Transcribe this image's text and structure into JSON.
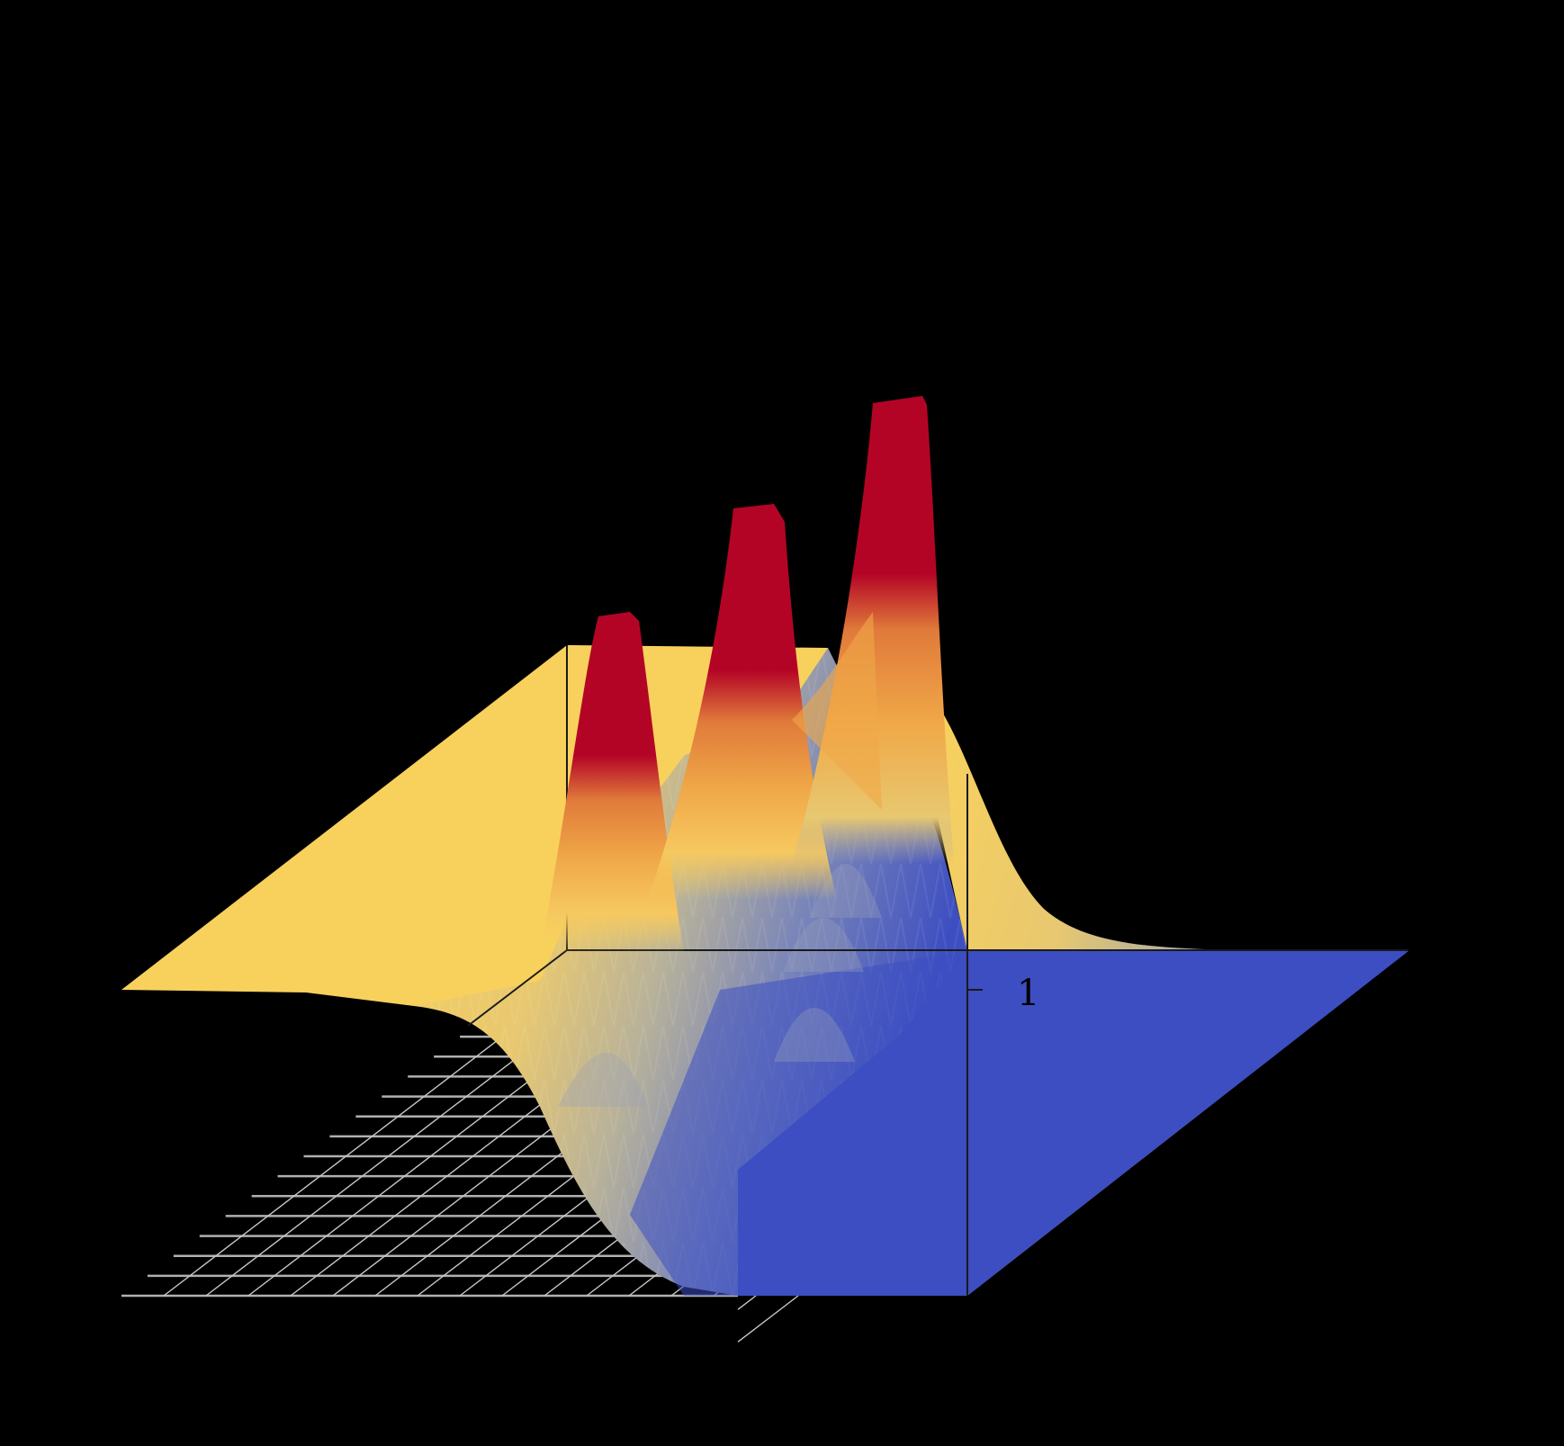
{
  "chart_data": {
    "type": "surface3d",
    "title": "",
    "xlabel": "",
    "ylabel": "",
    "zlabel": "",
    "colormap": "coolwarm",
    "z_ticks": [
      {
        "value": 1,
        "label": "1"
      }
    ],
    "features": {
      "high_plateau": {
        "side": "left/back",
        "color": "#F8D15C",
        "description": "flat region at high-ish value (yellow)"
      },
      "low_plateau": {
        "side": "right/front",
        "color": "#3D4EC2",
        "description": "flat region at low value (blue)"
      },
      "transition": "smooth sigmoid step from yellow plateau down to blue plateau with ripple/oscillation bands",
      "peaks": [
        {
          "index": 1,
          "relative_height": 0.62,
          "color": "#B40426",
          "position": "front-left"
        },
        {
          "index": 2,
          "relative_height": 0.8,
          "color": "#B40426",
          "position": "middle"
        },
        {
          "index": 3,
          "relative_height": 1.0,
          "color": "#B40426",
          "position": "back-right"
        }
      ]
    },
    "floor_grid": {
      "visible": true,
      "color": "#000000",
      "line_color": "#c0c0c0",
      "rows": 14,
      "cols": 16
    },
    "axis_box": {
      "visible": true,
      "color": "#1a1a1a"
    },
    "colors": {
      "red": "#B40426",
      "orange": "#E07A3A",
      "light_orange": "#F0A848",
      "yellow": "#F8D15C",
      "grey": "#B8B29A",
      "blue": "#3D4EC2",
      "background": "#000000"
    }
  },
  "labels": {
    "z_tick_1": "1"
  }
}
